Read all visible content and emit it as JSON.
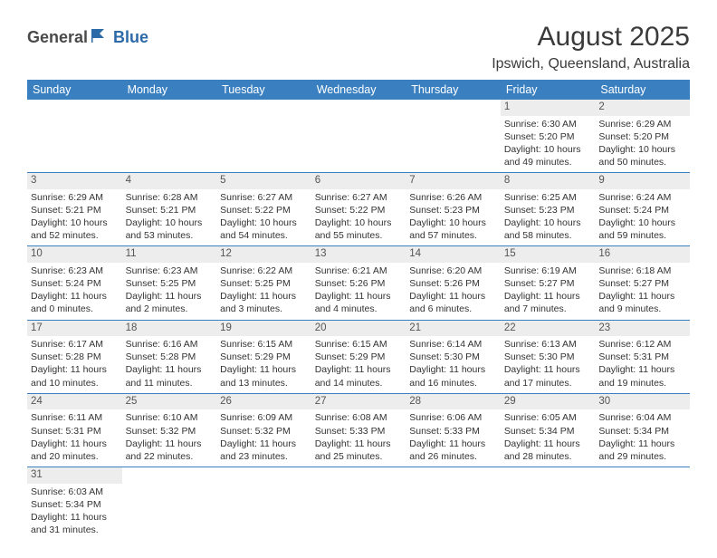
{
  "logo": {
    "part1": "General",
    "part2": "Blue"
  },
  "title": "August 2025",
  "location": "Ipswich, Queensland, Australia",
  "colors": {
    "header_bg": "#3a80c1",
    "header_text": "#ffffff",
    "daynum_bg": "#ededed",
    "cell_border": "#3a80c1",
    "logo_gray": "#4a4a4a",
    "logo_blue": "#2d6aa8"
  },
  "day_headers": [
    "Sunday",
    "Monday",
    "Tuesday",
    "Wednesday",
    "Thursday",
    "Friday",
    "Saturday"
  ],
  "weeks": [
    [
      null,
      null,
      null,
      null,
      null,
      {
        "n": "1",
        "sunrise": "6:30 AM",
        "sunset": "5:20 PM",
        "daylight": "10 hours and 49 minutes."
      },
      {
        "n": "2",
        "sunrise": "6:29 AM",
        "sunset": "5:20 PM",
        "daylight": "10 hours and 50 minutes."
      }
    ],
    [
      {
        "n": "3",
        "sunrise": "6:29 AM",
        "sunset": "5:21 PM",
        "daylight": "10 hours and 52 minutes."
      },
      {
        "n": "4",
        "sunrise": "6:28 AM",
        "sunset": "5:21 PM",
        "daylight": "10 hours and 53 minutes."
      },
      {
        "n": "5",
        "sunrise": "6:27 AM",
        "sunset": "5:22 PM",
        "daylight": "10 hours and 54 minutes."
      },
      {
        "n": "6",
        "sunrise": "6:27 AM",
        "sunset": "5:22 PM",
        "daylight": "10 hours and 55 minutes."
      },
      {
        "n": "7",
        "sunrise": "6:26 AM",
        "sunset": "5:23 PM",
        "daylight": "10 hours and 57 minutes."
      },
      {
        "n": "8",
        "sunrise": "6:25 AM",
        "sunset": "5:23 PM",
        "daylight": "10 hours and 58 minutes."
      },
      {
        "n": "9",
        "sunrise": "6:24 AM",
        "sunset": "5:24 PM",
        "daylight": "10 hours and 59 minutes."
      }
    ],
    [
      {
        "n": "10",
        "sunrise": "6:23 AM",
        "sunset": "5:24 PM",
        "daylight": "11 hours and 0 minutes."
      },
      {
        "n": "11",
        "sunrise": "6:23 AM",
        "sunset": "5:25 PM",
        "daylight": "11 hours and 2 minutes."
      },
      {
        "n": "12",
        "sunrise": "6:22 AM",
        "sunset": "5:25 PM",
        "daylight": "11 hours and 3 minutes."
      },
      {
        "n": "13",
        "sunrise": "6:21 AM",
        "sunset": "5:26 PM",
        "daylight": "11 hours and 4 minutes."
      },
      {
        "n": "14",
        "sunrise": "6:20 AM",
        "sunset": "5:26 PM",
        "daylight": "11 hours and 6 minutes."
      },
      {
        "n": "15",
        "sunrise": "6:19 AM",
        "sunset": "5:27 PM",
        "daylight": "11 hours and 7 minutes."
      },
      {
        "n": "16",
        "sunrise": "6:18 AM",
        "sunset": "5:27 PM",
        "daylight": "11 hours and 9 minutes."
      }
    ],
    [
      {
        "n": "17",
        "sunrise": "6:17 AM",
        "sunset": "5:28 PM",
        "daylight": "11 hours and 10 minutes."
      },
      {
        "n": "18",
        "sunrise": "6:16 AM",
        "sunset": "5:28 PM",
        "daylight": "11 hours and 11 minutes."
      },
      {
        "n": "19",
        "sunrise": "6:15 AM",
        "sunset": "5:29 PM",
        "daylight": "11 hours and 13 minutes."
      },
      {
        "n": "20",
        "sunrise": "6:15 AM",
        "sunset": "5:29 PM",
        "daylight": "11 hours and 14 minutes."
      },
      {
        "n": "21",
        "sunrise": "6:14 AM",
        "sunset": "5:30 PM",
        "daylight": "11 hours and 16 minutes."
      },
      {
        "n": "22",
        "sunrise": "6:13 AM",
        "sunset": "5:30 PM",
        "daylight": "11 hours and 17 minutes."
      },
      {
        "n": "23",
        "sunrise": "6:12 AM",
        "sunset": "5:31 PM",
        "daylight": "11 hours and 19 minutes."
      }
    ],
    [
      {
        "n": "24",
        "sunrise": "6:11 AM",
        "sunset": "5:31 PM",
        "daylight": "11 hours and 20 minutes."
      },
      {
        "n": "25",
        "sunrise": "6:10 AM",
        "sunset": "5:32 PM",
        "daylight": "11 hours and 22 minutes."
      },
      {
        "n": "26",
        "sunrise": "6:09 AM",
        "sunset": "5:32 PM",
        "daylight": "11 hours and 23 minutes."
      },
      {
        "n": "27",
        "sunrise": "6:08 AM",
        "sunset": "5:33 PM",
        "daylight": "11 hours and 25 minutes."
      },
      {
        "n": "28",
        "sunrise": "6:06 AM",
        "sunset": "5:33 PM",
        "daylight": "11 hours and 26 minutes."
      },
      {
        "n": "29",
        "sunrise": "6:05 AM",
        "sunset": "5:34 PM",
        "daylight": "11 hours and 28 minutes."
      },
      {
        "n": "30",
        "sunrise": "6:04 AM",
        "sunset": "5:34 PM",
        "daylight": "11 hours and 29 minutes."
      }
    ],
    [
      {
        "n": "31",
        "sunrise": "6:03 AM",
        "sunset": "5:34 PM",
        "daylight": "11 hours and 31 minutes."
      },
      null,
      null,
      null,
      null,
      null,
      null
    ]
  ],
  "labels": {
    "sunrise": "Sunrise: ",
    "sunset": "Sunset: ",
    "daylight": "Daylight: "
  }
}
